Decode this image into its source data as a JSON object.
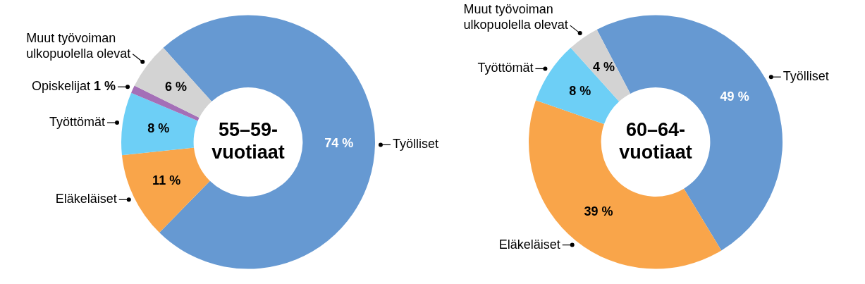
{
  "chart_data": [
    {
      "type": "donut",
      "title": "55–59-vuotiaat",
      "categories": [
        "Työlliset",
        "Eläkeläiset",
        "Työttömät",
        "Opiskelijat",
        "Muut työvoiman ulkopuolella olevat"
      ],
      "values": [
        74,
        11,
        8,
        1,
        6
      ],
      "colors": [
        "#6699d2",
        "#f9a54a",
        "#6dcff6",
        "#a46fb7",
        "#d3d3d3"
      ],
      "value_labels": [
        "74 %",
        "11 %",
        "8 %",
        "1 %",
        "6 %"
      ]
    },
    {
      "type": "donut",
      "title": "60–64-vuotiaat",
      "categories": [
        "Työlliset",
        "Eläkeläiset",
        "Työttömät",
        "Muut työvoiman ulkopuolella olevat"
      ],
      "values": [
        49,
        39,
        8,
        4
      ],
      "colors": [
        "#6699d2",
        "#f9a54a",
        "#6dcff6",
        "#d3d3d3"
      ],
      "value_labels": [
        "49 %",
        "39 %",
        "8 %",
        "4 %"
      ]
    }
  ]
}
